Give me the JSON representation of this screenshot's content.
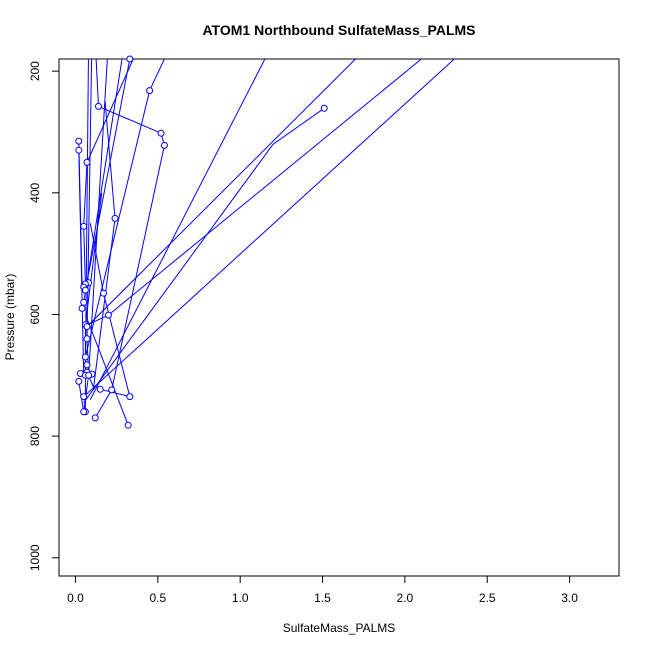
{
  "chart_data": {
    "type": "line",
    "title": "ATOM1 Northbound SulfateMass_PALMS",
    "xlabel": "SulfateMass_PALMS",
    "ylabel": "Pressure (mbar)",
    "xlim": [
      -0.1,
      3.3
    ],
    "ylim": [
      1030,
      180
    ],
    "y_reversed": true,
    "grid": false,
    "x_ticks": [
      0.0,
      0.5,
      1.0,
      1.5,
      2.0,
      2.5,
      3.0
    ],
    "x_tick_labels": [
      "0.0",
      "0.5",
      "1.0",
      "1.5",
      "2.0",
      "2.5",
      "3.0"
    ],
    "y_ticks": [
      200,
      400,
      600,
      800,
      1000
    ],
    "y_tick_labels": [
      "200",
      "400",
      "600",
      "800",
      "1000"
    ],
    "series_color": "#0000ff",
    "segments": [
      [
        [
          0.2,
          150
        ],
        [
          0.08,
          700
        ],
        [
          0.05,
          760
        ],
        [
          0.02,
          710
        ]
      ],
      [
        [
          0.1,
          150
        ],
        [
          0.07,
          640
        ],
        [
          0.08,
          700
        ]
      ],
      [
        [
          0.3,
          150
        ],
        [
          0.05,
          580
        ],
        [
          0.04,
          590
        ]
      ],
      [
        [
          0.5,
          150
        ],
        [
          0.33,
          180
        ],
        [
          0.06,
          560
        ],
        [
          0.05,
          555
        ]
      ],
      [
        [
          0.6,
          150
        ],
        [
          0.54,
          180
        ],
        [
          0.45,
          232
        ],
        [
          0.06,
          670
        ]
      ],
      [
        [
          0.4,
          150
        ],
        [
          0.07,
          350
        ],
        [
          0.05,
          455
        ],
        [
          0.06,
          550
        ]
      ],
      [
        [
          1.15,
          180
        ],
        [
          0.09,
          740
        ]
      ],
      [
        [
          1.7,
          180
        ],
        [
          0.07,
          620
        ]
      ],
      [
        [
          2.1,
          180
        ],
        [
          0.2,
          601
        ],
        [
          0.05,
          620
        ]
      ],
      [
        [
          2.3,
          180
        ],
        [
          0.05,
          735
        ]
      ],
      [
        [
          0.02,
          330
        ],
        [
          0.05,
          700
        ],
        [
          0.03,
          697
        ]
      ],
      [
        [
          0.02,
          315
        ],
        [
          0.04,
          555
        ]
      ],
      [
        [
          0.12,
          150
        ],
        [
          0.14,
          258
        ],
        [
          0.52,
          302
        ],
        [
          0.54,
          322
        ],
        [
          0.22,
          724
        ],
        [
          0.12,
          770
        ]
      ],
      [
        [
          0.18,
          250
        ],
        [
          0.24,
          442
        ],
        [
          0.11,
          720
        ],
        [
          0.07,
          695
        ]
      ],
      [
        [
          0.09,
          450
        ],
        [
          0.17,
          565
        ],
        [
          0.33,
          735
        ],
        [
          0.15,
          723
        ]
      ],
      [
        [
          1.51,
          261
        ],
        [
          1.2,
          320
        ],
        [
          0.05,
          745
        ]
      ],
      [
        [
          0.06,
          600
        ],
        [
          0.32,
          782
        ]
      ],
      [
        [
          0.16,
          400
        ],
        [
          0.06,
          617
        ],
        [
          0.06,
          760
        ]
      ],
      [
        [
          0.08,
          150
        ],
        [
          0.06,
          700
        ],
        [
          0.1,
          698
        ]
      ]
    ],
    "points": [
      [
        0.33,
        180
      ],
      [
        0.45,
        232
      ],
      [
        0.14,
        258
      ],
      [
        1.51,
        261
      ],
      [
        0.52,
        302
      ],
      [
        0.54,
        322
      ],
      [
        0.02,
        315
      ],
      [
        0.02,
        330
      ],
      [
        0.07,
        350
      ],
      [
        0.24,
        442
      ],
      [
        0.05,
        455
      ],
      [
        0.08,
        548
      ],
      [
        0.06,
        550
      ],
      [
        0.05,
        555
      ],
      [
        0.06,
        560
      ],
      [
        0.17,
        565
      ],
      [
        0.05,
        580
      ],
      [
        0.04,
        590
      ],
      [
        0.2,
        601
      ],
      [
        0.06,
        617
      ],
      [
        0.07,
        620
      ],
      [
        0.07,
        640
      ],
      [
        0.06,
        670
      ],
      [
        0.07,
        683
      ],
      [
        0.07,
        695
      ],
      [
        0.03,
        697
      ],
      [
        0.1,
        698
      ],
      [
        0.06,
        700
      ],
      [
        0.08,
        700
      ],
      [
        0.02,
        710
      ],
      [
        0.15,
        723
      ],
      [
        0.22,
        724
      ],
      [
        0.33,
        735
      ],
      [
        0.05,
        735
      ],
      [
        0.06,
        760
      ],
      [
        0.05,
        760
      ],
      [
        0.12,
        770
      ],
      [
        0.32,
        782
      ]
    ]
  }
}
